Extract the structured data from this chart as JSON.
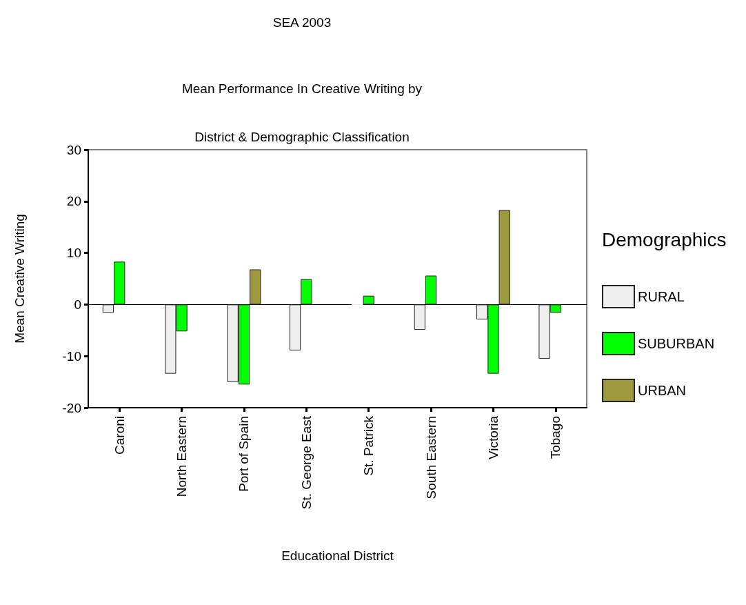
{
  "chart_data": {
    "type": "bar",
    "title": "SEA 2003",
    "subtitle": "Mean Performance In Creative Writing by\nDistrict & Demographic Classification",
    "xlabel": "Educational District",
    "ylabel": "Mean Creative Writing",
    "legend_title": "Demographics",
    "categories": [
      "Caroni",
      "North Eastern",
      "Port of Spain",
      "St. George East",
      "St. Patrick",
      "South Eastern",
      "Victoria",
      "Tobago"
    ],
    "series": [
      {
        "name": "RURAL",
        "color": "#efefef",
        "values": [
          -1.6,
          -13.4,
          -15.0,
          -8.9,
          0,
          -4.9,
          -2.9,
          -10.5
        ]
      },
      {
        "name": "SUBURBAN",
        "color": "#00ff00",
        "values": [
          8.3,
          -5.2,
          -15.5,
          4.9,
          1.7,
          5.6,
          -13.4,
          -1.6
        ]
      },
      {
        "name": "URBAN",
        "color": "#9c9a3c",
        "values": [
          null,
          null,
          6.8,
          null,
          null,
          null,
          18.3,
          null
        ]
      }
    ],
    "ylim": [
      -20,
      30
    ],
    "yticks": [
      -20,
      -10,
      0,
      10,
      20,
      30
    ],
    "legend": "right"
  }
}
